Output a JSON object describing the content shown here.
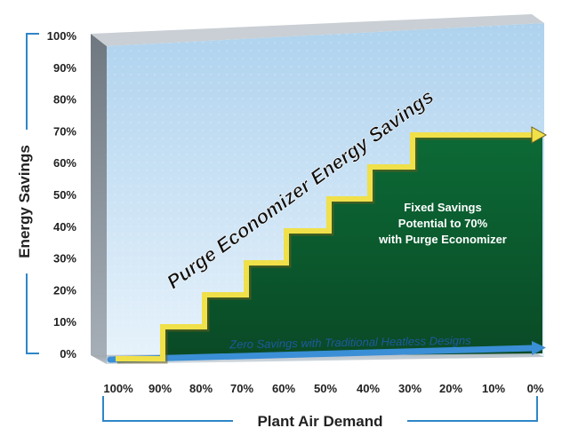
{
  "chart_data": {
    "type": "area",
    "title": "Purge Economizer Energy Savings",
    "ylabel": "Energy Savings",
    "xlabel": "Plant Air Demand",
    "y_tick_labels": [
      "100%",
      "90%",
      "80%",
      "70%",
      "60%",
      "50%",
      "40%",
      "30%",
      "20%",
      "10%",
      "0%"
    ],
    "x_tick_labels": [
      "100%",
      "90%",
      "80%",
      "70%",
      "60%",
      "50%",
      "40%",
      "30%",
      "20%",
      "10%",
      "0%"
    ],
    "ylim": [
      0,
      100
    ],
    "x_reversed": true,
    "series": [
      {
        "name": "Purge Economizer Energy Savings",
        "x": [
          100,
          90,
          80,
          70,
          60,
          50,
          40,
          30,
          20,
          10,
          0
        ],
        "values": [
          0,
          10,
          20,
          30,
          40,
          50,
          60,
          70,
          70,
          70,
          70
        ]
      },
      {
        "name": "Zero Savings with Traditional Heatless Designs",
        "x": [
          100,
          0
        ],
        "values": [
          0,
          0
        ]
      }
    ],
    "annotations": {
      "fixed_savings": [
        "Fixed Savings",
        "Potential to 70%",
        "with Purge Economizer"
      ],
      "zero_savings": "Zero Savings with Traditional Heatless Designs"
    },
    "colors": {
      "sky_top": "#aed2ee",
      "sky_bottom": "#e8f3fb",
      "green_area": "#0e5a30",
      "step_line": "#f0e04a",
      "zero_line": "#3b8fd6",
      "wall": "#9aa3ab",
      "axis_bracket": "#2f86c8"
    },
    "grid": false
  }
}
